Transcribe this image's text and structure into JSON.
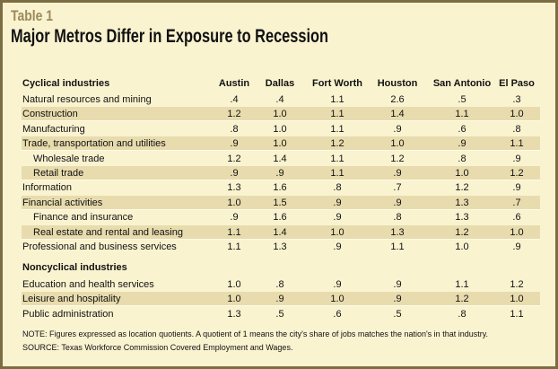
{
  "table_label": "Table 1",
  "title": "Major Metros Differ in Exposure to Recession",
  "columns": [
    "Austin",
    "Dallas",
    "Fort Worth",
    "Houston",
    "San Antonio",
    "El Paso"
  ],
  "sections": [
    {
      "heading": "Cyclical industries",
      "rows": [
        {
          "label": "Natural resources and mining",
          "indent": false,
          "values": [
            ".4",
            ".4",
            "1.1",
            "2.6",
            ".5",
            ".3"
          ]
        },
        {
          "label": "Construction",
          "indent": false,
          "values": [
            "1.2",
            "1.0",
            "1.1",
            "1.4",
            "1.1",
            "1.0"
          ]
        },
        {
          "label": "Manufacturing",
          "indent": false,
          "values": [
            ".8",
            "1.0",
            "1.1",
            ".9",
            ".6",
            ".8"
          ]
        },
        {
          "label": "Trade, transportation and utilities",
          "indent": false,
          "values": [
            ".9",
            "1.0",
            "1.2",
            "1.0",
            ".9",
            "1.1"
          ]
        },
        {
          "label": "Wholesale trade",
          "indent": true,
          "values": [
            "1.2",
            "1.4",
            "1.1",
            "1.2",
            ".8",
            ".9"
          ]
        },
        {
          "label": "Retail trade",
          "indent": true,
          "values": [
            ".9",
            ".9",
            "1.1",
            ".9",
            "1.0",
            "1.2"
          ]
        },
        {
          "label": "Information",
          "indent": false,
          "values": [
            "1.3",
            "1.6",
            ".8",
            ".7",
            "1.2",
            ".9"
          ]
        },
        {
          "label": "Financial activities",
          "indent": false,
          "values": [
            "1.0",
            "1.5",
            ".9",
            ".9",
            "1.3",
            ".7"
          ]
        },
        {
          "label": "Finance and insurance",
          "indent": true,
          "values": [
            ".9",
            "1.6",
            ".9",
            ".8",
            "1.3",
            ".6"
          ]
        },
        {
          "label": "Real estate and rental and leasing",
          "indent": true,
          "values": [
            "1.1",
            "1.4",
            "1.0",
            "1.3",
            "1.2",
            "1.0"
          ]
        },
        {
          "label": "Professional and business services",
          "indent": false,
          "values": [
            "1.1",
            "1.3",
            ".9",
            "1.1",
            "1.0",
            ".9"
          ]
        }
      ]
    },
    {
      "heading": "Noncyclical industries",
      "rows": [
        {
          "label": "Education and health services",
          "indent": false,
          "values": [
            "1.0",
            ".8",
            ".9",
            ".9",
            "1.1",
            "1.2"
          ]
        },
        {
          "label": "Leisure and hospitality",
          "indent": false,
          "values": [
            "1.0",
            ".9",
            "1.0",
            ".9",
            "1.2",
            "1.0"
          ]
        },
        {
          "label": "Public administration",
          "indent": false,
          "values": [
            "1.3",
            ".5",
            ".6",
            ".5",
            ".8",
            "1.1"
          ]
        }
      ]
    }
  ],
  "note": "NOTE: Figures expressed as location quotients. A quotient of 1 means the city's share of jobs matches the nation's in that industry.",
  "source": "SOURCE: Texas Workforce Commission Covered Employment and Wages.",
  "colors": {
    "background": "#faf3d0",
    "shade": "#e8dcae",
    "border": "#7d6d42",
    "table_label": "#9b8a5c"
  }
}
